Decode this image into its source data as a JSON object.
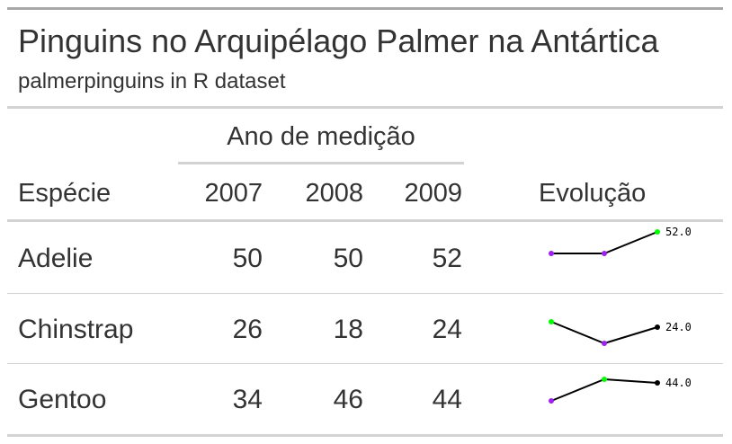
{
  "table": {
    "title": "Pinguins no Arquipélago Palmer na Antártica",
    "subtitle": "palmerpinguins in R dataset",
    "spanner": "Ano de medição",
    "columns": {
      "species": "Espécie",
      "y2007": "2007",
      "y2008": "2008",
      "y2009": "2009",
      "evolution": "Evolução"
    },
    "rows": [
      {
        "species": "Adelie",
        "y2007": "50",
        "y2008": "50",
        "y2009": "52",
        "spark_label": "52.0"
      },
      {
        "species": "Chinstrap",
        "y2007": "26",
        "y2008": "18",
        "y2009": "24",
        "spark_label": "24.0"
      },
      {
        "species": "Gentoo",
        "y2007": "34",
        "y2008": "46",
        "y2009": "44",
        "spark_label": "44.0"
      }
    ]
  },
  "colors": {
    "text": "#333333",
    "rule_dark": "#a8a8a8",
    "rule_light": "#d3d3d3",
    "spark_line": "#000000",
    "spark_min": "#a020f0",
    "spark_max": "#00ff00"
  }
}
